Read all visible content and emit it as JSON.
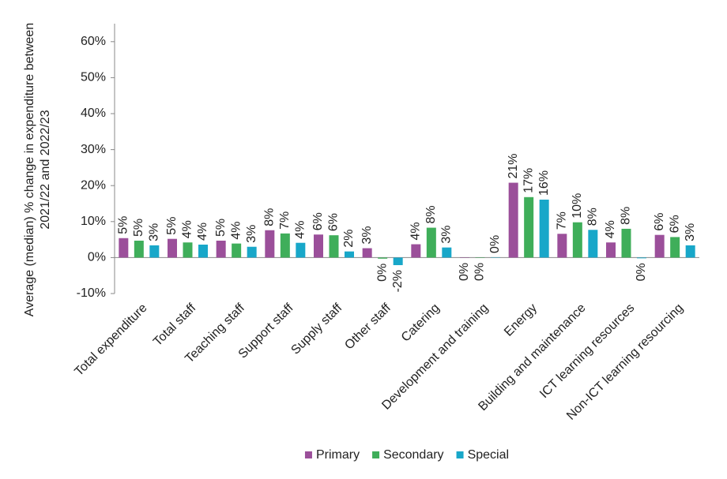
{
  "chart_data": {
    "type": "bar",
    "ylabel": [
      "Average (median)  % change in expenditure between",
      "2021/22 and 2022/23"
    ],
    "categories": [
      "Total expenditure",
      "Total staff",
      "Teaching staff",
      "Support staff",
      "Supply staff",
      "Other staff",
      "Catering",
      "Development and training",
      "Energy",
      "Building and maintenance",
      "ICT learning resources",
      "Non-ICT learning resourcing"
    ],
    "series": [
      {
        "name": "Primary",
        "color": "#9b4f9a",
        "values": [
          5.4,
          5.2,
          4.7,
          7.6,
          6.4,
          2.6,
          3.7,
          -0.1,
          20.8,
          6.6,
          4.2,
          6.3
        ],
        "value_labels": [
          "5%",
          "5%",
          "5%",
          "8%",
          "6%",
          "3%",
          "4%",
          "0%",
          "21%",
          "7%",
          "4%",
          "6%"
        ]
      },
      {
        "name": "Secondary",
        "color": "#3fae5a",
        "values": [
          4.7,
          4.2,
          3.9,
          6.7,
          6.2,
          -0.3,
          8.3,
          -0.1,
          16.8,
          9.8,
          8.0,
          5.7
        ],
        "value_labels": [
          "5%",
          "4%",
          "4%",
          "7%",
          "6%",
          "0%",
          "8%",
          "0%",
          "17%",
          "10%",
          "8%",
          "6%"
        ]
      },
      {
        "name": "Special",
        "color": "#18a7c9",
        "values": [
          3.4,
          3.6,
          3.0,
          4.1,
          1.7,
          -2.1,
          2.8,
          0.1,
          16.1,
          7.7,
          -0.2,
          3.4
        ],
        "value_labels": [
          "3%",
          "4%",
          "3%",
          "4%",
          "2%",
          "-2%",
          "3%",
          "0%",
          "16%",
          "8%",
          "0%",
          "3%"
        ]
      }
    ],
    "ylim": [
      -10,
      65
    ],
    "yticks": [
      {
        "value": -10,
        "label": "-10%"
      },
      {
        "value": 0,
        "label": "0%"
      },
      {
        "value": 10,
        "label": "10%"
      },
      {
        "value": 20,
        "label": "20%"
      },
      {
        "value": 30,
        "label": "30%"
      },
      {
        "value": 40,
        "label": "40%"
      },
      {
        "value": 50,
        "label": "50%"
      },
      {
        "value": 60,
        "label": "60%"
      }
    ],
    "grid": false,
    "legend": "bottom"
  }
}
